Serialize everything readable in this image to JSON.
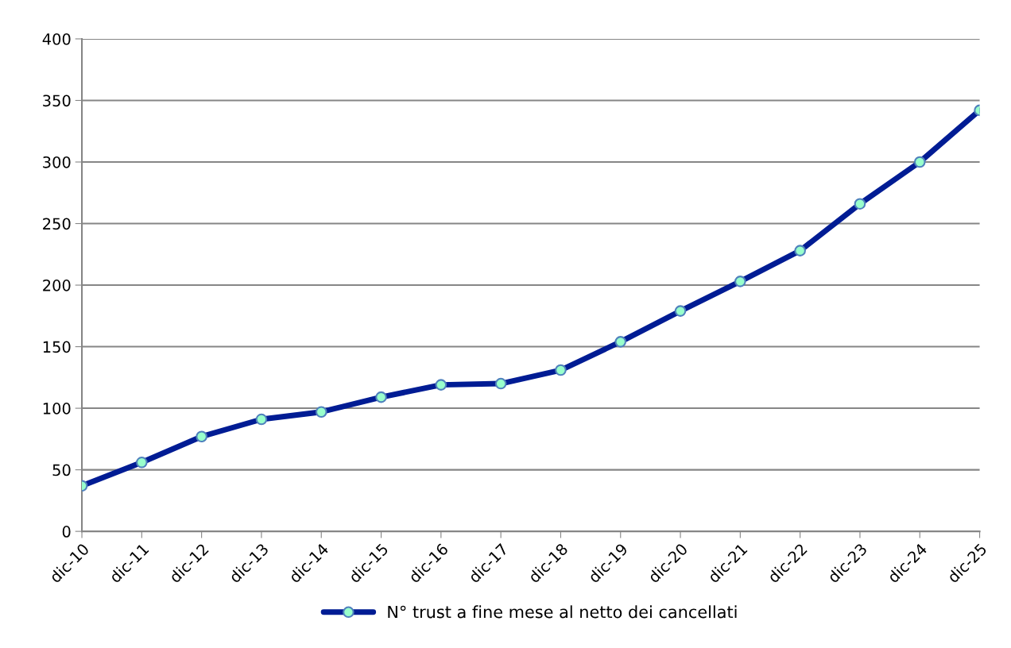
{
  "chart_data": {
    "type": "line",
    "categories": [
      "dic-10",
      "dic-11",
      "dic-12",
      "dic-13",
      "dic-14",
      "dic-15",
      "dic-16",
      "dic-17",
      "dic-18",
      "dic-19",
      "dic-20",
      "dic-21",
      "dic-22",
      "dic-23",
      "dic-24",
      "dic-25"
    ],
    "series": [
      {
        "name": "N° trust a fine mese al netto dei cancellati",
        "color": "#001c94",
        "values": [
          37,
          56,
          77,
          91,
          97,
          109,
          119,
          120,
          131,
          154,
          179,
          203,
          228,
          266,
          300,
          342
        ]
      }
    ],
    "ylim": [
      0,
      400
    ],
    "yticks": [
      0,
      50,
      100,
      150,
      200,
      250,
      300,
      350,
      400
    ],
    "grid": "y",
    "legend": "bottom",
    "marker": "circle",
    "line_style": "solid"
  }
}
